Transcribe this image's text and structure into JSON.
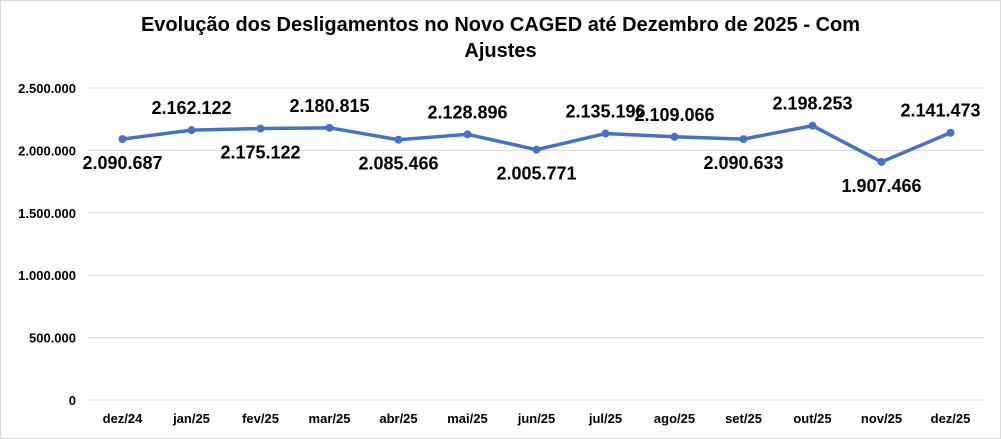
{
  "chart_data": {
    "type": "line",
    "title_line1": "Evolução dos Desligamentos no Novo CAGED até Dezembro de 2025 - Com",
    "title_line2": "Ajustes",
    "categories": [
      "dez/24",
      "jan/25",
      "fev/25",
      "mar/25",
      "abr/25",
      "mai/25",
      "jun/25",
      "jul/25",
      "ago/25",
      "set/25",
      "out/25",
      "nov/25",
      "dez/25"
    ],
    "values": [
      2090687,
      2162122,
      2175122,
      2180815,
      2085466,
      2128896,
      2005771,
      2135196,
      2109066,
      2090633,
      2198253,
      1907466,
      2141473
    ],
    "ylim": [
      0,
      2500000
    ],
    "yticks": [
      0,
      500000,
      1000000,
      1500000,
      2000000,
      2500000
    ],
    "ytick_labels": [
      "0",
      "500.000",
      "1.000.000",
      "1.500.000",
      "2.000.000",
      "2.500.000"
    ],
    "grid": true,
    "legend": "none",
    "series_color": "#4472c4",
    "grid_color": "#d9d9d9"
  }
}
